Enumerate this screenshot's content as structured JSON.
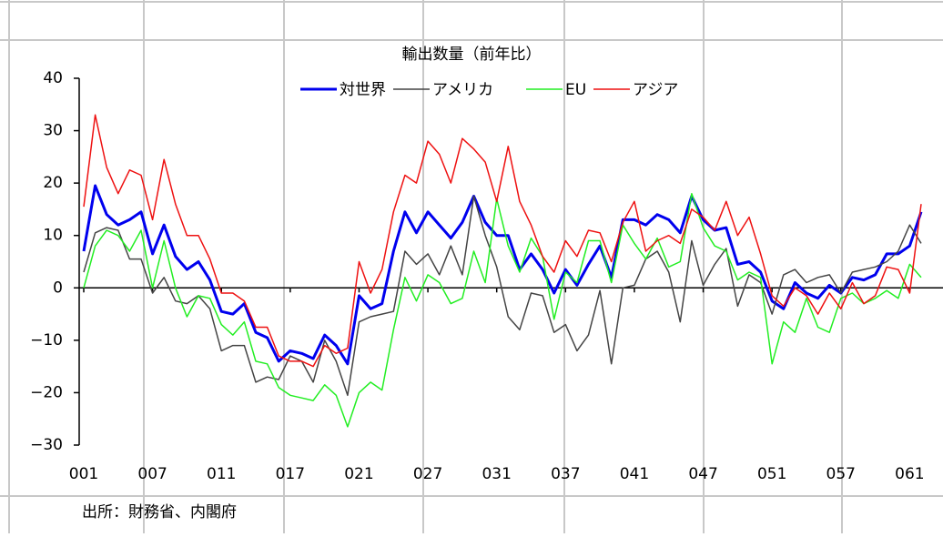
{
  "chart_data": {
    "type": "line",
    "title": "輸出数量（前年比）",
    "categories": [
      "001",
      null,
      null,
      null,
      null,
      null,
      "007",
      null,
      null,
      null,
      null,
      null,
      "011",
      null,
      null,
      null,
      null,
      null,
      "017",
      null,
      null,
      null,
      null,
      null,
      "021",
      null,
      null,
      null,
      null,
      null,
      "027",
      null,
      null,
      null,
      null,
      null,
      "031",
      null,
      null,
      null,
      null,
      null,
      "037",
      null,
      null,
      null,
      null,
      null,
      "041",
      null,
      null,
      null,
      null,
      null,
      "047",
      null,
      null,
      null,
      null,
      null,
      "051",
      null,
      null,
      null,
      null,
      null,
      "057",
      null,
      null,
      null,
      null,
      null,
      "061",
      null
    ],
    "series": [
      {
        "name": "対世界",
        "color": "#0000ee",
        "line_width": 3,
        "values": [
          7,
          19.5,
          14,
          12,
          13,
          14.5,
          6.5,
          12,
          6,
          3.5,
          5,
          1.5,
          -4.5,
          -5,
          -3,
          -8.5,
          -9.5,
          -14,
          -12,
          -12.5,
          -13.5,
          -9,
          -11,
          -14.5,
          -1.5,
          -4,
          -3,
          7,
          14.5,
          10.5,
          14.5,
          12,
          9.5,
          12.5,
          17.5,
          12.5,
          10,
          10,
          3.5,
          6.5,
          3.5,
          -1,
          3.5,
          0.5,
          4.5,
          8,
          2,
          13,
          13,
          12,
          14,
          13,
          10.5,
          17.5,
          13,
          11,
          11.5,
          4.5,
          5,
          3,
          -2.5,
          -4,
          1,
          -1,
          -2,
          0.5,
          -1,
          2,
          1.5,
          2.5,
          6.5,
          6.5,
          8,
          14.5
        ]
      },
      {
        "name": "アメリカ",
        "color": "#444444",
        "line_width": 1.5,
        "values": [
          3,
          10.5,
          11.5,
          11,
          5.5,
          5.5,
          -1,
          2,
          -2.5,
          -3,
          -1.5,
          -4,
          -12,
          -11,
          -11,
          -18,
          -17,
          -17.5,
          -13,
          -14,
          -18,
          -10,
          -14,
          -20.5,
          -6.5,
          -5.5,
          -5,
          -4.5,
          7,
          4.5,
          6.5,
          2.5,
          8,
          2.5,
          17.5,
          10,
          4,
          -5.5,
          -8,
          -1,
          -1.5,
          -8.5,
          -7,
          -12,
          -9,
          -0.5,
          -14.5,
          0,
          0.5,
          5.5,
          7,
          3,
          -6.5,
          9,
          0.5,
          4.5,
          7.5,
          -3.5,
          2.5,
          1,
          -5,
          2.5,
          3.5,
          1,
          2,
          2.5,
          -1,
          3,
          3.5,
          4,
          5,
          7,
          12,
          8.5
        ]
      },
      {
        "name": "EU",
        "color": "#22ee22",
        "line_width": 1.5,
        "values": [
          0,
          8,
          11,
          10,
          7,
          11,
          0,
          9,
          0,
          -5.5,
          -1.5,
          -2,
          -7,
          -9,
          -6.5,
          -14,
          -14.5,
          -19,
          -20.5,
          -21,
          -21.5,
          -18.5,
          -20.5,
          -26.5,
          -20,
          -18,
          -19.5,
          -8,
          2,
          -2.5,
          2.5,
          1,
          -3,
          -2,
          7,
          1,
          17,
          8,
          3,
          9.5,
          6,
          -6,
          3,
          1,
          9,
          9,
          1,
          12,
          8.5,
          5.5,
          9.5,
          4,
          5,
          18,
          11.5,
          8,
          7,
          1.5,
          3,
          2,
          -14.5,
          -6.5,
          -8.5,
          -2,
          -7.5,
          -8.5,
          -2,
          -1,
          -3,
          -2,
          -0.5,
          -2,
          4.5,
          2
        ]
      },
      {
        "name": "アジア",
        "color": "#ee1111",
        "line_width": 1.5,
        "values": [
          15.5,
          33,
          23,
          18,
          22.5,
          21.5,
          13,
          24.5,
          16,
          10,
          10,
          5.5,
          -1,
          -1,
          -2.5,
          -7.5,
          -7.5,
          -13,
          -14,
          -14,
          -15,
          -11,
          -12.5,
          -11.5,
          5,
          -1,
          3.5,
          14.5,
          21.5,
          20,
          28,
          25.5,
          20,
          28.5,
          26.5,
          24,
          16.5,
          27,
          16.5,
          12,
          6,
          3,
          9,
          6,
          11,
          10.5,
          5,
          12.5,
          16.5,
          7,
          9,
          10,
          8.5,
          15,
          13.5,
          11,
          16.5,
          10,
          13.5,
          6.5,
          -1.5,
          -3.5,
          0,
          -1.5,
          -5,
          -1,
          -4,
          1,
          -3,
          -1.5,
          4,
          3.5,
          -1,
          16
        ]
      }
    ],
    "ylim": [
      -30,
      40
    ],
    "yticks": [
      {
        "value": -30,
        "label": "−30"
      },
      {
        "value": -20,
        "label": "−20"
      },
      {
        "value": -10,
        "label": "−10"
      },
      0,
      10,
      20,
      30,
      40
    ],
    "note": "出所：財務省、内閣府"
  }
}
